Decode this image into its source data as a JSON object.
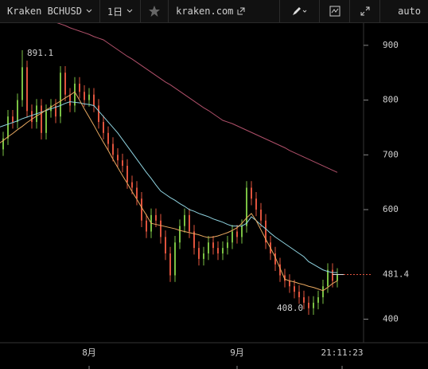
{
  "toolbar": {
    "market": "Kraken BCHUSD",
    "period": "1日",
    "site": "kraken.com",
    "scale": "auto"
  },
  "chart_data": {
    "type": "candlestick",
    "categories": [
      null,
      null,
      null,
      null,
      null,
      null,
      null,
      null,
      null,
      null,
      null,
      null,
      null,
      null,
      null,
      null,
      null,
      null,
      null,
      "8月",
      null,
      null,
      null,
      null,
      null,
      null,
      null,
      null,
      null,
      null,
      null,
      null,
      null,
      null,
      null,
      null,
      null,
      null,
      null,
      null,
      null,
      null,
      null,
      null,
      null,
      null,
      null,
      null,
      null,
      null,
      "9月",
      null,
      null,
      null,
      null,
      null,
      null,
      null,
      null,
      null,
      null,
      null,
      null,
      null,
      null,
      null,
      null,
      null,
      null,
      null,
      null,
      null
    ],
    "open": [
      690,
      710,
      730,
      770,
      760,
      800,
      860,
      780,
      760,
      790,
      740,
      780,
      790,
      770,
      850,
      810,
      790,
      830,
      815,
      800,
      810,
      790,
      760,
      740,
      720,
      700,
      690,
      680,
      650,
      640,
      620,
      580,
      560,
      590,
      580,
      550,
      520,
      480,
      540,
      570,
      590,
      560,
      530,
      510,
      520,
      540,
      530,
      520,
      530,
      540,
      560,
      550,
      570,
      640,
      620,
      600,
      580,
      540,
      520,
      500,
      480,
      470,
      460,
      450,
      440,
      430,
      420,
      430,
      440,
      460,
      490,
      470
    ],
    "high": [
      722,
      742,
      782,
      782,
      812,
      891.1,
      872,
      792,
      802,
      802,
      792,
      802,
      802,
      862,
      862,
      822,
      842,
      842,
      827,
      822,
      822,
      802,
      772,
      752,
      732,
      712,
      702,
      692,
      662,
      652,
      632,
      592,
      602,
      602,
      592,
      562,
      532,
      552,
      582,
      602,
      602,
      572,
      542,
      532,
      552,
      552,
      542,
      542,
      552,
      572,
      572,
      582,
      652,
      652,
      632,
      612,
      592,
      552,
      532,
      512,
      492,
      482,
      472,
      462,
      452,
      442,
      442,
      452,
      472,
      502,
      502,
      493
    ],
    "low": [
      678,
      698,
      718,
      748,
      748,
      788,
      768,
      748,
      748,
      728,
      728,
      768,
      758,
      758,
      798,
      778,
      778,
      803,
      788,
      788,
      778,
      748,
      728,
      708,
      688,
      678,
      668,
      638,
      628,
      608,
      568,
      548,
      548,
      568,
      538,
      508,
      468,
      468,
      528,
      558,
      548,
      518,
      498,
      498,
      508,
      518,
      508,
      508,
      518,
      528,
      538,
      538,
      558,
      608,
      588,
      568,
      528,
      508,
      488,
      468,
      458,
      448,
      438,
      428,
      418,
      408,
      408,
      418,
      428,
      448,
      458,
      458
    ],
    "close": [
      710,
      730,
      770,
      760,
      800,
      860,
      780,
      760,
      790,
      740,
      780,
      790,
      770,
      850,
      810,
      790,
      830,
      815,
      800,
      810,
      790,
      760,
      740,
      720,
      700,
      690,
      680,
      650,
      640,
      620,
      580,
      560,
      590,
      580,
      550,
      520,
      480,
      540,
      570,
      590,
      560,
      530,
      510,
      520,
      540,
      530,
      520,
      530,
      540,
      560,
      550,
      570,
      640,
      620,
      600,
      580,
      540,
      520,
      500,
      480,
      470,
      460,
      450,
      440,
      430,
      420,
      430,
      440,
      460,
      490,
      470,
      481.4
    ],
    "up_color": "#7ac143",
    "down_color": "#e0533d",
    "series": [
      {
        "color": "#8fd3e0",
        "values": [
          750,
          753,
          756,
          759,
          762,
          766,
          769,
          772,
          775,
          778,
          781,
          784,
          787,
          790,
          794,
          797,
          796,
          795,
          793,
          792,
          790,
          780,
          770,
          760,
          750,
          740,
          728,
          716,
          704,
          692,
          680,
          668,
          657,
          645,
          634,
          628,
          622,
          617,
          611,
          606,
          600,
          597,
          593,
          590,
          587,
          583,
          580,
          577,
          573,
          570,
          570,
          570,
          575,
          587,
          580,
          572,
          565,
          557,
          550,
          544,
          538,
          532,
          526,
          520,
          514,
          505,
          500,
          495,
          490,
          487,
          485,
          485
        ]
      },
      {
        "color": "#e8a860",
        "values": [
          720,
          726,
          733,
          739,
          746,
          752,
          759,
          765,
          771,
          776,
          782,
          787,
          793,
          798,
          804,
          809,
          815,
          800,
          784,
          769,
          754,
          738,
          723,
          708,
          692,
          677,
          662,
          648,
          633,
          619,
          604,
          590,
          575,
          573,
          571,
          569,
          567,
          565,
          562,
          560,
          558,
          556,
          554,
          551,
          549,
          550,
          552,
          555,
          558,
          562,
          567,
          575,
          585,
          593,
          580,
          563,
          546,
          530,
          513,
          493,
          473,
          470,
          468,
          465,
          463,
          460,
          458,
          455,
          452,
          458,
          465,
          470
        ]
      },
      {
        "color": "#b0506a",
        "values": [
          null,
          null,
          null,
          null,
          null,
          null,
          null,
          null,
          null,
          null,
          null,
          null,
          942,
          939,
          936,
          932,
          929,
          926,
          923,
          920,
          916,
          913,
          910,
          904,
          898,
          892,
          886,
          880,
          875,
          869,
          863,
          857,
          851,
          845,
          839,
          833,
          828,
          822,
          816,
          810,
          804,
          798,
          792,
          786,
          781,
          775,
          769,
          763,
          760,
          757,
          753,
          749,
          745,
          741,
          737,
          733,
          729,
          725,
          721,
          717,
          713,
          708,
          704,
          700,
          696,
          692,
          688,
          684,
          680,
          676,
          672,
          668
        ]
      }
    ],
    "annotations": [
      {
        "value": 891.1,
        "label": "891.1"
      },
      {
        "value": 408,
        "label": "408.0"
      }
    ],
    "time_label": "21:11:23",
    "last_price_color": "#e0533d",
    "ylim": [
      357,
      942
    ],
    "yticks": [
      400,
      600,
      700,
      800,
      900
    ]
  }
}
